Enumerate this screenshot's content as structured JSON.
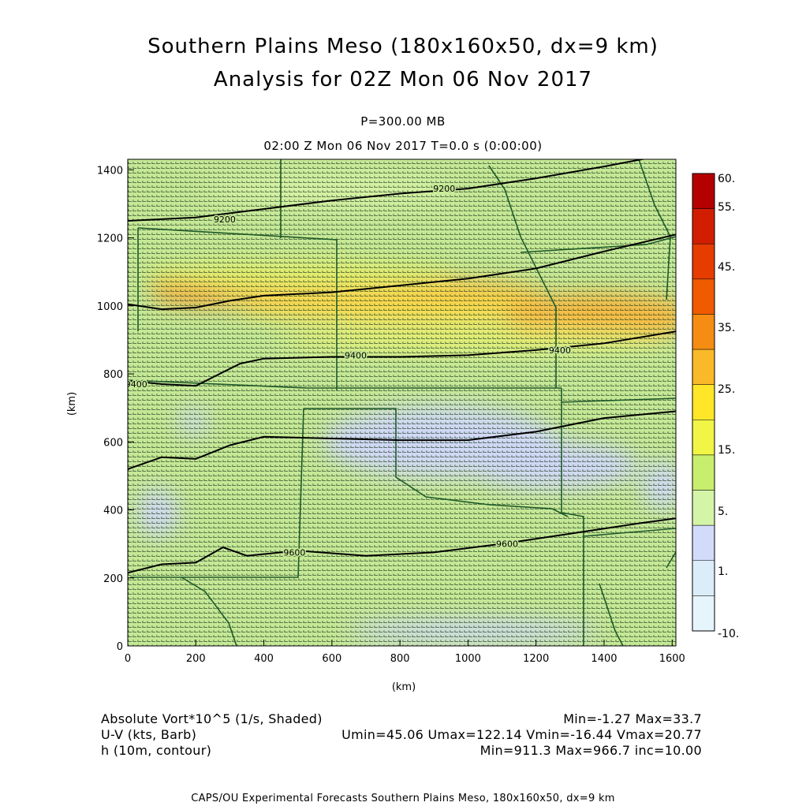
{
  "title": {
    "line1": "Southern Plains Meso (180x160x50, dx=9 km)",
    "line2": "Analysis for 02Z Mon 06 Nov 2017"
  },
  "subtitle": {
    "level": "P=300.00 MB",
    "time": "02:00 Z Mon 06 Nov 2017    T=0.0 s (0:00:00)"
  },
  "axes": {
    "xlabel": "(km)",
    "ylabel": "(km)",
    "xlim": [
      0,
      1611
    ],
    "ylim": [
      0,
      1431
    ],
    "xticks": [
      0,
      200,
      400,
      600,
      800,
      1000,
      1200,
      1400,
      1600
    ],
    "yticks": [
      0,
      200,
      400,
      600,
      800,
      1000,
      1200,
      1400
    ]
  },
  "colorbar": {
    "labels": [
      "60.",
      "55.",
      "45.",
      "35.",
      "25.",
      "15.",
      "5.",
      "1.",
      "-10."
    ],
    "colors": [
      "#b40000",
      "#d21e00",
      "#e63c00",
      "#f05a00",
      "#f58c14",
      "#fab928",
      "#ffe628",
      "#f0f546",
      "#c8ee6e",
      "#d4f5a8",
      "#d2dcfa",
      "#dcedfa",
      "#e6f5fc"
    ]
  },
  "contour_labels": [
    {
      "text": "9200",
      "x": 930,
      "y": 1345
    },
    {
      "text": "9200",
      "x": 285,
      "y": 1255
    },
    {
      "text": "9400",
      "x": 670,
      "y": 855
    },
    {
      "text": "9400",
      "x": 1270,
      "y": 870
    },
    {
      "text": "9400",
      "x": 25,
      "y": 770
    },
    {
      "text": "9600",
      "x": 490,
      "y": 275
    },
    {
      "text": "9600",
      "x": 1115,
      "y": 300
    }
  ],
  "contour_lines": [
    [
      [
        0,
        1250
      ],
      [
        200,
        1260
      ],
      [
        400,
        1285
      ],
      [
        600,
        1310
      ],
      [
        800,
        1330
      ],
      [
        1000,
        1345
      ],
      [
        1200,
        1375
      ],
      [
        1400,
        1410
      ],
      [
        1611,
        1450
      ]
    ],
    [
      [
        0,
        1005
      ],
      [
        100,
        990
      ],
      [
        200,
        995
      ],
      [
        300,
        1015
      ],
      [
        400,
        1030
      ],
      [
        600,
        1040
      ],
      [
        800,
        1060
      ],
      [
        1000,
        1080
      ],
      [
        1200,
        1110
      ],
      [
        1400,
        1160
      ],
      [
        1611,
        1210
      ]
    ],
    [
      [
        0,
        780
      ],
      [
        100,
        770
      ],
      [
        200,
        765
      ],
      [
        250,
        790
      ],
      [
        330,
        830
      ],
      [
        400,
        845
      ],
      [
        600,
        850
      ],
      [
        800,
        850
      ],
      [
        1000,
        855
      ],
      [
        1200,
        870
      ],
      [
        1400,
        890
      ],
      [
        1611,
        925
      ]
    ],
    [
      [
        0,
        520
      ],
      [
        100,
        555
      ],
      [
        200,
        550
      ],
      [
        300,
        590
      ],
      [
        400,
        615
      ],
      [
        600,
        610
      ],
      [
        800,
        605
      ],
      [
        1000,
        605
      ],
      [
        1200,
        630
      ],
      [
        1400,
        670
      ],
      [
        1611,
        690
      ]
    ],
    [
      [
        0,
        215
      ],
      [
        100,
        240
      ],
      [
        200,
        245
      ],
      [
        280,
        290
      ],
      [
        350,
        265
      ],
      [
        500,
        280
      ],
      [
        700,
        265
      ],
      [
        900,
        275
      ],
      [
        1100,
        300
      ],
      [
        1300,
        330
      ],
      [
        1500,
        360
      ],
      [
        1611,
        375
      ]
    ]
  ],
  "footer": {
    "field1_label": "Absolute Vort*10^5 (1/s, Shaded)",
    "field1_stats": "Min=-1.27 Max=33.7",
    "field2_label": "U-V (kts, Barb)",
    "field2_stats": "Umin=45.06 Umax=122.14 Vmin=-16.44 Vmax=20.77",
    "field3_label": "h (10m, contour)",
    "field3_stats": "Min=911.3 Max=966.7 inc=10.00"
  },
  "credit": "CAPS/OU Experimental Forecasts  Southern Plains Meso, 180x160x50, dx=9 km"
}
